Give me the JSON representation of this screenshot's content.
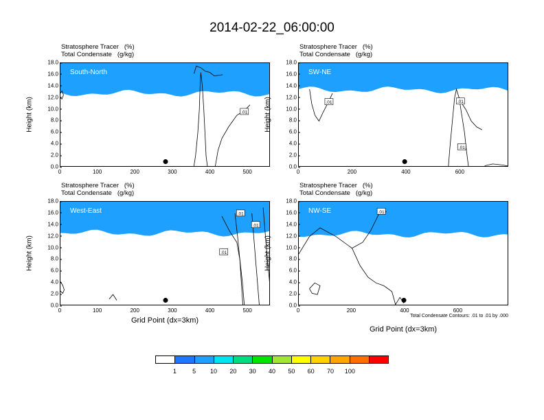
{
  "title": "2014-02-22_06:00:00",
  "footnote": "Total Condensate Contours: .01 to .01 by .000",
  "contour_label": ".01",
  "chart_data": {
    "type": "heatmap",
    "panels": [
      {
        "id": "south-north",
        "label": "South-North",
        "title_line1": "Stratosphere Tracer   (%)",
        "title_line2": "Total Condensate   (g/kg)",
        "ylabel": "Height (km)",
        "xlabel": "",
        "xlim": [
          0,
          560
        ],
        "ylim": [
          0,
          18
        ],
        "xticks": [
          "0",
          "100",
          "200",
          "300",
          "400",
          "500"
        ],
        "xtick_values": [
          0,
          100,
          200,
          300,
          400,
          500
        ],
        "yticks": [
          "0.0",
          "2.0",
          "4.0",
          "6.0",
          "8.0",
          "10.0",
          "12.0",
          "14.0",
          "16.0",
          "18.0"
        ],
        "marker": [
          280,
          1.0
        ],
        "tracer_base_km": 12.8,
        "contour_labels_at": [
          [
            490,
            9.6
          ]
        ],
        "contour_paths": [
          [
            [
              355,
              0
            ],
            [
              360,
              2
            ],
            [
              366,
              6
            ],
            [
              370,
              10
            ],
            [
              372,
              14
            ],
            [
              374,
              16.4
            ],
            [
              378,
              14
            ],
            [
              382,
              10
            ],
            [
              385,
              6
            ],
            [
              388,
              2
            ],
            [
              392,
              0
            ]
          ],
          [
            [
              412,
              0
            ],
            [
              420,
              3
            ],
            [
              430,
              5
            ],
            [
              448,
              7
            ],
            [
              470,
              9
            ],
            [
              490,
              9.8
            ],
            [
              505,
              10.8
            ]
          ],
          [
            [
              356,
              16.2
            ],
            [
              362,
              17.5
            ],
            [
              374,
              17.2
            ],
            [
              386,
              16.6
            ],
            [
              398,
              16.4
            ],
            [
              410,
              15.8
            ],
            [
              432,
              16.0
            ]
          ],
          [
            [
              0,
              12.0
            ],
            [
              4,
              11.8
            ],
            [
              8,
              12.5
            ],
            [
              4,
              13.2
            ],
            [
              0,
              12.8
            ]
          ]
        ]
      },
      {
        "id": "sw-ne",
        "label": "SW-NE",
        "title_line1": "Stratosphere Tracer   (%)",
        "title_line2": "Total Condensate   (g/kg)",
        "ylabel": "Height (km)",
        "xlabel": "",
        "xlim": [
          0,
          780
        ],
        "ylim": [
          0,
          18
        ],
        "xticks": [
          "0",
          "200",
          "400",
          "600"
        ],
        "xtick_values": [
          0,
          200,
          400,
          600
        ],
        "yticks": [
          "0.0",
          "2.0",
          "4.0",
          "6.0",
          "8.0",
          "10.0",
          "12.0",
          "14.0",
          "16.0",
          "18.0"
        ],
        "marker": [
          393,
          1.0
        ],
        "tracer_base_km": 13.4,
        "contour_labels_at": [
          [
            112,
            11.3
          ],
          [
            605,
            3.5
          ],
          [
            600,
            11.4
          ]
        ],
        "contour_paths": [
          [
            [
              40,
              13.5
            ],
            [
              48,
              11
            ],
            [
              60,
              9
            ],
            [
              75,
              8
            ],
            [
              90,
              9.5
            ],
            [
              110,
              11.3
            ],
            [
              125,
              12.8
            ]
          ],
          [
            [
              555,
              0
            ],
            [
              560,
              3
            ],
            [
              566,
              6
            ],
            [
              572,
              9
            ],
            [
              578,
              12
            ],
            [
              585,
              13.5
            ],
            [
              595,
              12
            ],
            [
              605,
              9
            ],
            [
              615,
              6
            ],
            [
              622,
              3
            ],
            [
              630,
              0
            ]
          ],
          [
            [
              600,
              11.4
            ],
            [
              620,
              10
            ],
            [
              640,
              8
            ],
            [
              660,
              7
            ],
            [
              680,
              6.5
            ]
          ],
          [
            [
              690,
              0.3
            ],
            [
              720,
              0.6
            ],
            [
              760,
              0.4
            ],
            [
              780,
              0.2
            ]
          ]
        ]
      },
      {
        "id": "west-east",
        "label": "West-East",
        "title_line1": "Stratosphere Tracer   (%)",
        "title_line2": "Total Condensate   (g/kg)",
        "ylabel": "Height (km)",
        "xlabel": "Grid Point (dx=3km)",
        "xlim": [
          0,
          560
        ],
        "ylim": [
          0,
          18
        ],
        "xticks": [
          "0",
          "100",
          "200",
          "300",
          "400",
          "500"
        ],
        "xtick_values": [
          0,
          100,
          200,
          300,
          400,
          500
        ],
        "yticks": [
          "0.0",
          "2.0",
          "4.0",
          "6.0",
          "8.0",
          "10.0",
          "12.0",
          "14.0",
          "16.0",
          "18.0"
        ],
        "marker": [
          280,
          1.0
        ],
        "tracer_base_km": 12.6,
        "contour_labels_at": [
          [
            435,
            9.3
          ],
          [
            480,
            16.0
          ],
          [
            520,
            14.0
          ]
        ],
        "contour_paths": [
          [
            [
              430,
              15.5
            ],
            [
              450,
              13
            ],
            [
              470,
              11
            ],
            [
              478,
              8
            ],
            [
              485,
              4
            ],
            [
              490,
              0
            ]
          ],
          [
            [
              465,
              16
            ],
            [
              472,
              12
            ],
            [
              478,
              8
            ],
            [
              482,
              4
            ],
            [
              486,
              0
            ]
          ],
          [
            [
              510,
              16
            ],
            [
              515,
              12
            ],
            [
              520,
              8
            ],
            [
              525,
              4
            ],
            [
              530,
              0
            ]
          ],
          [
            [
              540,
              17
            ],
            [
              545,
              13
            ],
            [
              550,
              9
            ],
            [
              556,
              5
            ],
            [
              560,
              2
            ]
          ],
          [
            [
              0,
              4.2
            ],
            [
              6,
              3.6
            ],
            [
              10,
              2.8
            ],
            [
              6,
              2.2
            ],
            [
              0,
              2.6
            ]
          ],
          [
            [
              130,
              1.2
            ],
            [
              140,
              2.0
            ],
            [
              150,
              1.0
            ]
          ]
        ]
      },
      {
        "id": "nw-se",
        "label": "NW-SE",
        "title_line1": "Stratosphere Tracer   (%)",
        "title_line2": "Total Condensate   (g/kg)",
        "ylabel": "Height (km)",
        "xlabel": "Grid Point (dx=3km)",
        "xlim": [
          0,
          790
        ],
        "ylim": [
          0,
          18
        ],
        "xticks": [
          "0",
          "200",
          "400",
          "600"
        ],
        "xtick_values": [
          0,
          200,
          400,
          600
        ],
        "yticks": [
          "0.0",
          "2.0",
          "4.0",
          "6.0",
          "8.0",
          "10.0",
          "12.0",
          "14.0",
          "16.0",
          "18.0"
        ],
        "marker": [
          395,
          1.0
        ],
        "tracer_base_km": 12.4,
        "contour_labels_at": [
          [
            310,
            16.3
          ]
        ],
        "contour_paths": [
          [
            [
              0,
              9
            ],
            [
              40,
              12
            ],
            [
              80,
              13.5
            ],
            [
              140,
              12
            ],
            [
              200,
              10
            ],
            [
              240,
              11
            ],
            [
              270,
              13
            ],
            [
              300,
              15.8
            ],
            [
              330,
              16.3
            ]
          ],
          [
            [
              200,
              10
            ],
            [
              230,
              7
            ],
            [
              260,
              5
            ],
            [
              290,
              4
            ],
            [
              320,
              3.5
            ],
            [
              350,
              2.5
            ],
            [
              365,
              0
            ]
          ],
          [
            [
              40,
              3
            ],
            [
              60,
              4
            ],
            [
              80,
              3.5
            ],
            [
              70,
              2
            ],
            [
              50,
              2.2
            ],
            [
              40,
              3
            ]
          ],
          [
            [
              360,
              0
            ],
            [
              380,
              1.5
            ],
            [
              395,
              0.5
            ]
          ]
        ]
      }
    ],
    "colorbar": {
      "labels": [
        "1",
        "5",
        "10",
        "20",
        "30",
        "40",
        "50",
        "60",
        "70",
        "100"
      ],
      "colors": [
        "#ffffff",
        "#1e78ff",
        "#1ea0ff",
        "#00e6f0",
        "#00dc82",
        "#00e600",
        "#a0e632",
        "#ffff00",
        "#ffd200",
        "#ffa500",
        "#ff6e00",
        "#ff0000"
      ]
    }
  }
}
